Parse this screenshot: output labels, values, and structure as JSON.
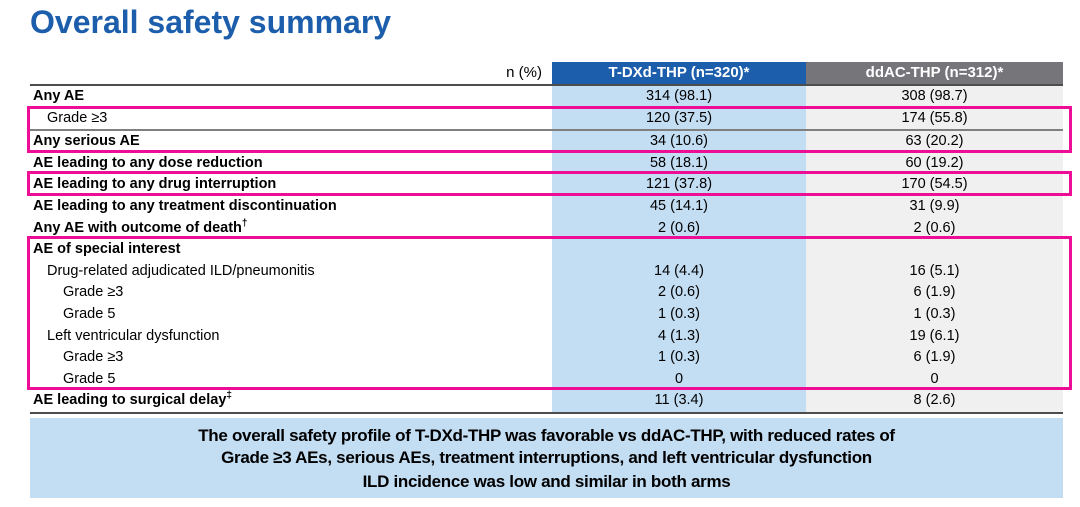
{
  "page": {
    "title": "Overall safety summary"
  },
  "table": {
    "header": {
      "unit_label": "n (%)",
      "col1": "T-DXd-THP (n=320)*",
      "col2": "ddAC-THP (n=312)*"
    },
    "rows": [
      {
        "label": "Any AE",
        "sup": "",
        "bold": true,
        "indent": 0,
        "v1": "314 (98.1)",
        "v2": "308 (98.7)"
      },
      {
        "label": "Grade ≥3",
        "sup": "",
        "bold": false,
        "indent": 1,
        "v1": "120 (37.5)",
        "v2": "174 (55.8)"
      },
      {
        "label": "Any serious AE",
        "sup": "",
        "bold": true,
        "indent": 0,
        "v1": "34 (10.6)",
        "v2": "63 (20.2)"
      },
      {
        "label": "AE leading to any dose reduction",
        "sup": "",
        "bold": true,
        "indent": 0,
        "v1": "58 (18.1)",
        "v2": "60 (19.2)"
      },
      {
        "label": "AE leading to any drug interruption",
        "sup": "",
        "bold": true,
        "indent": 0,
        "v1": "121 (37.8)",
        "v2": "170 (54.5)"
      },
      {
        "label": "AE leading to any treatment discontinuation",
        "sup": "",
        "bold": true,
        "indent": 0,
        "v1": "45 (14.1)",
        "v2": "31 (9.9)"
      },
      {
        "label": "Any AE with outcome of death",
        "sup": "†",
        "bold": true,
        "indent": 0,
        "v1": "2 (0.6)",
        "v2": "2 (0.6)"
      },
      {
        "label": "AE of special interest",
        "sup": "",
        "bold": true,
        "indent": 0,
        "v1": "",
        "v2": ""
      },
      {
        "label": "Drug-related adjudicated ILD/pneumonitis",
        "sup": "",
        "bold": false,
        "indent": 1,
        "v1": "14 (4.4)",
        "v2": "16 (5.1)"
      },
      {
        "label": "Grade ≥3",
        "sup": "",
        "bold": false,
        "indent": 2,
        "v1": "2 (0.6)",
        "v2": "6 (1.9)"
      },
      {
        "label": "Grade 5",
        "sup": "",
        "bold": false,
        "indent": 2,
        "v1": "1 (0.3)",
        "v2": "1 (0.3)"
      },
      {
        "label": "Left ventricular dysfunction",
        "sup": "",
        "bold": false,
        "indent": 1,
        "v1": "4 (1.3)",
        "v2": "19 (6.1)"
      },
      {
        "label": "Grade ≥3",
        "sup": "",
        "bold": false,
        "indent": 2,
        "v1": "1 (0.3)",
        "v2": "6 (1.9)"
      },
      {
        "label": "Grade 5",
        "sup": "",
        "bold": false,
        "indent": 2,
        "v1": "0",
        "v2": "0"
      },
      {
        "label": "AE leading to surgical delay",
        "sup": "‡",
        "bold": true,
        "indent": 0,
        "v1": "11 (3.4)",
        "v2": "8 (2.6)"
      }
    ],
    "divider_above_row_index": 2
  },
  "highlights": {
    "color": "#EE0E96",
    "boxes": [
      {
        "name": "grade3-and-serious-ae",
        "rows": [
          1,
          2
        ]
      },
      {
        "name": "drug-interruption",
        "rows": [
          4,
          4
        ]
      },
      {
        "name": "ae-of-special-interest",
        "rows": [
          7,
          13
        ]
      }
    ]
  },
  "summary_box": {
    "lines": [
      "The overall safety profile of T-DXd-THP was favorable vs ddAC-THP, with reduced rates of",
      "Grade ≥3 AEs, serious AEs, treatment interruptions, and left ventricular dysfunction",
      "ILD incidence was low and similar in both arms"
    ]
  },
  "colors": {
    "title_blue": "#1C5EAB",
    "header_blue": "#1C5EAB",
    "header_gray": "#76757A",
    "cell_blue": "#C3DDF3",
    "cell_gray": "#F0F0F0",
    "highlight_pink": "#EE0E96",
    "rule_dark": "#4D4D4D",
    "summary_bg": "#C3DDF3"
  }
}
